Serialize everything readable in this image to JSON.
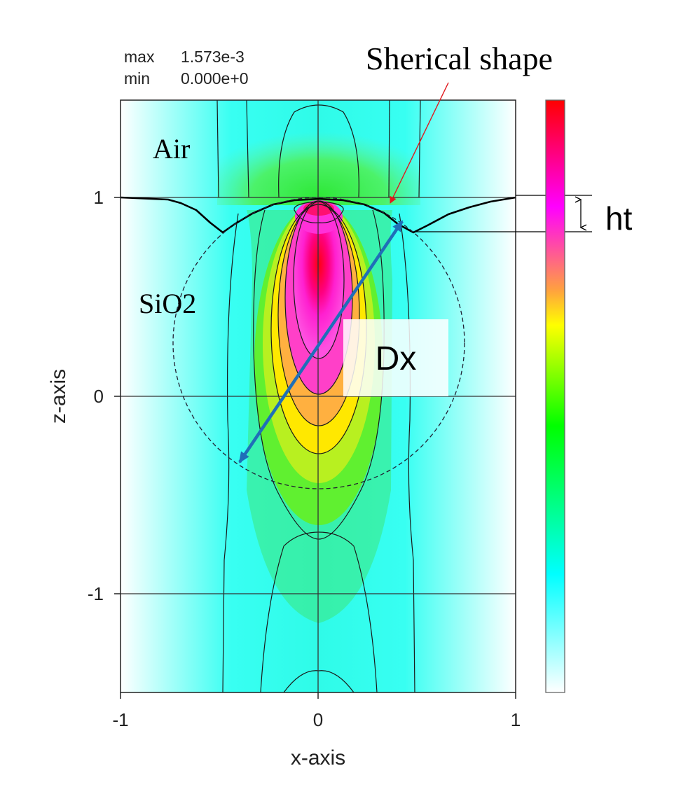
{
  "chart_data": {
    "type": "heatmap",
    "title": "",
    "stats": {
      "max_label": "max",
      "max_value": "1.573e-3",
      "min_label": "min",
      "min_value": "0.000e+0"
    },
    "xlabel": "x-axis",
    "ylabel": "z-axis",
    "xlim": [
      -1,
      1
    ],
    "ylim": [
      -1.5,
      1.5
    ],
    "xticks": [
      {
        "value": -1,
        "label": "-1"
      },
      {
        "value": 0,
        "label": "0"
      },
      {
        "value": 1,
        "label": "1"
      }
    ],
    "yticks": [
      {
        "value": 1,
        "label": "1"
      },
      {
        "value": 0,
        "label": "0"
      },
      {
        "value": -1,
        "label": "-1"
      }
    ],
    "grid": true,
    "colormap": [
      "#ffffff",
      "#00ffff",
      "#00ff00",
      "#ffff00",
      "#ff00ff",
      "#ff0000"
    ],
    "colorbar_range": [
      0,
      0.001573
    ],
    "regions": [
      {
        "label": "Air",
        "x": -0.7,
        "z": 1.25
      },
      {
        "label": "SiO2",
        "x": -0.77,
        "z": 0.45
      }
    ],
    "interface_z": 1.0,
    "dimple_depth_ht": 0.18,
    "sphere": {
      "center": [
        0.05,
        0.25
      ],
      "radius": 0.73
    },
    "annotations": {
      "spherical_shape": "Sherical shape",
      "ht": "ht",
      "dx": "Dx"
    },
    "colors": {
      "arrow_red": "#e0191e",
      "arrow_blue": "#1f6fb8",
      "contour": "#1a1a1a"
    }
  }
}
